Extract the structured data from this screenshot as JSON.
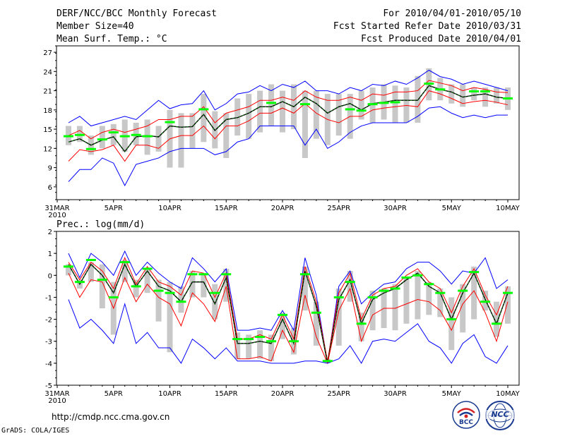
{
  "header": {
    "title": "DERF/NCC/BCC Monthly Forecast",
    "member_size": "Member Size=40",
    "variable": "Mean Surf. Temp.: °C",
    "period": "For 2010/04/01-2010/05/10",
    "fcst_started": "Fcst Started Refer Date 2010/03/31",
    "fcst_produced": "Fcst Produced Date 2010/04/01"
  },
  "footer": {
    "url": "http://cmdp.ncc.cma.gov.cn",
    "grads": "GrADS: COLA/IGES",
    "logo_bcc_text": "BCC",
    "logo_ncc_text": "NCC"
  },
  "colors": {
    "ensemble_line": "#0000ff",
    "spread_line": "#ff0000",
    "mean_line": "#000000",
    "observed": "#00e000",
    "box": "#c8c8c8",
    "bar": "#00ff00"
  },
  "chart_data": [
    {
      "type": "line",
      "title": "Mean Surf. Temp.: °C",
      "x_tick_labels": [
        "31MAR",
        "5APR",
        "10APR",
        "15APR",
        "20APR",
        "25APR",
        "30APR",
        "5MAY",
        "10MAY"
      ],
      "x_tick_days": [
        0,
        5,
        10,
        15,
        20,
        25,
        30,
        35,
        40
      ],
      "x_year_label": "2010",
      "ylim": [
        4,
        28
      ],
      "yticks": [
        6,
        9,
        12,
        15,
        18,
        21,
        24,
        27
      ],
      "days": [
        1,
        2,
        3,
        4,
        5,
        6,
        7,
        8,
        9,
        10,
        11,
        12,
        13,
        14,
        15,
        16,
        17,
        18,
        19,
        20,
        21,
        22,
        23,
        24,
        25,
        26,
        27,
        28,
        29,
        30,
        31,
        32,
        33,
        34,
        35,
        36,
        37,
        38,
        39,
        40
      ],
      "series": [
        {
          "name": "max",
          "values": [
            16,
            17,
            15.5,
            16,
            16.5,
            17,
            16.5,
            18,
            19.5,
            18.2,
            18.8,
            19,
            21,
            18,
            19,
            20.5,
            20.8,
            21.8,
            21,
            22,
            21.5,
            22.5,
            21,
            21,
            20.5,
            21.5,
            21,
            22,
            21.8,
            22.5,
            22,
            23,
            24.2,
            23.2,
            22.8,
            22,
            22.5,
            22,
            21.5,
            21
          ]
        },
        {
          "name": "upper",
          "values": [
            14,
            14.8,
            13.5,
            14.5,
            15,
            14.5,
            15,
            15.5,
            16.5,
            16.5,
            17,
            17,
            18.5,
            16,
            17.5,
            18,
            18.5,
            19.5,
            19.5,
            20,
            19.5,
            21,
            20,
            19.5,
            19.5,
            20,
            19.5,
            20.5,
            20.3,
            20.8,
            20.8,
            21,
            22.6,
            22.2,
            21.8,
            21,
            21.5,
            21.2,
            20.8,
            20.7
          ]
        },
        {
          "name": "mean",
          "values": [
            13,
            13.5,
            12.5,
            13.3,
            13.8,
            11.5,
            13.8,
            14,
            13.8,
            15.5,
            15.3,
            15.4,
            17.3,
            14.8,
            16.5,
            16.8,
            17.5,
            18.5,
            18.5,
            19.3,
            18.5,
            20,
            19,
            17.5,
            18.5,
            19,
            18,
            19,
            19.2,
            19.5,
            19.5,
            19.5,
            21.8,
            21.2,
            20.8,
            20,
            20.3,
            20.5,
            20,
            19.8
          ]
        },
        {
          "name": "lower",
          "values": [
            10,
            11.8,
            11.5,
            11.8,
            12.5,
            10,
            12.5,
            12.5,
            12,
            13.5,
            14,
            14,
            15.5,
            13.5,
            15.5,
            15.5,
            16.3,
            17.5,
            17.5,
            18.3,
            17.5,
            19,
            17.5,
            16.5,
            16,
            17,
            17,
            18,
            18.3,
            18.5,
            18.7,
            18.5,
            21,
            20.5,
            19.8,
            19,
            19.3,
            19.5,
            19.2,
            18.8
          ]
        },
        {
          "name": "min",
          "values": [
            6.8,
            8.7,
            8.7,
            10.5,
            9.7,
            6.2,
            9.5,
            10,
            10.5,
            11.5,
            12,
            12,
            12,
            11,
            11.5,
            13,
            13.5,
            15.5,
            15.5,
            15.5,
            15.5,
            12.5,
            15,
            12,
            13,
            14.5,
            15.5,
            16,
            16,
            16,
            16,
            17,
            18.3,
            18.5,
            17.5,
            16.8,
            17.2,
            16.8,
            17.2,
            17.2
          ]
        }
      ],
      "boxes": {
        "low": [
          12.5,
          13,
          11,
          12,
          12.5,
          11.5,
          12.5,
          11,
          11.5,
          9,
          9,
          12,
          13,
          12,
          10.5,
          14,
          13.5,
          14.5,
          15.5,
          14.5,
          15,
          10.5,
          13.5,
          12.5,
          14,
          13.5,
          16.5,
          16,
          16.5,
          16,
          16,
          16,
          19.5,
          19.5,
          19,
          18.5,
          19.5,
          18.5,
          19,
          18
        ],
        "high": [
          15.5,
          15.5,
          14,
          15.5,
          15.8,
          16.5,
          16,
          16.5,
          15.5,
          18,
          17.5,
          17.5,
          20.5,
          17.8,
          17.5,
          19.8,
          20.5,
          21,
          22,
          21,
          22,
          21,
          21,
          20.5,
          20.5,
          20.5,
          21,
          21.5,
          22,
          21.8,
          21.5,
          23.3,
          24.5,
          23,
          22,
          22,
          21.5,
          21.5,
          21.5,
          21.5
        ]
      },
      "observed_bars": [
        13.9,
        14.1,
        11.9,
        13.4,
        14.5,
        13.9,
        14.1,
        13.9,
        null,
        16.1,
        null,
        null,
        18.1,
        null,
        null,
        null,
        null,
        null,
        19.1,
        null,
        null,
        18.9,
        null,
        null,
        null,
        18.1,
        17.9,
        18.9,
        19.1,
        19.2,
        null,
        null,
        22.1,
        21.2,
        null,
        null,
        20.9,
        20.9,
        null,
        19.8
      ]
    },
    {
      "type": "line",
      "title": "Prec.: log(mm/d)",
      "x_tick_labels": [
        "31MAR",
        "5APR",
        "10APR",
        "15APR",
        "20APR",
        "25APR",
        "30APR",
        "5MAY",
        "10MAY"
      ],
      "x_tick_days": [
        0,
        5,
        10,
        15,
        20,
        25,
        30,
        35,
        40
      ],
      "x_year_label": "2010",
      "ylim": [
        -5,
        2
      ],
      "yticks": [
        -5,
        -4,
        -3,
        -2,
        -1,
        0,
        1,
        2
      ],
      "days": [
        1,
        2,
        3,
        4,
        5,
        6,
        7,
        8,
        9,
        10,
        11,
        12,
        13,
        14,
        15,
        16,
        17,
        18,
        19,
        20,
        21,
        22,
        23,
        24,
        25,
        26,
        27,
        28,
        29,
        30,
        31,
        32,
        33,
        34,
        35,
        36,
        37,
        38,
        39,
        40
      ],
      "series": [
        {
          "name": "max",
          "values": [
            1,
            -0.1,
            1,
            0.6,
            0,
            1.1,
            0,
            0.6,
            0.1,
            -0.3,
            -0.6,
            0.8,
            0.3,
            -0.3,
            0.3,
            -2.5,
            -2.5,
            -2.4,
            -2.5,
            -1.6,
            -2.5,
            0.8,
            -0.9,
            -4,
            -0.5,
            0.2,
            -1.3,
            -0.8,
            -0.4,
            -0.3,
            0.3,
            0.6,
            0.6,
            0.2,
            -0.4,
            0.2,
            0.1,
            0.8,
            -0.6,
            -0.2
          ]
        },
        {
          "name": "upper",
          "values": [
            0.6,
            -0.2,
            0.6,
            0.2,
            -0.6,
            0.8,
            -0.4,
            0.4,
            -0.3,
            -0.5,
            -0.9,
            0.2,
            0.1,
            -1,
            0.1,
            -2.9,
            -2.9,
            -2.7,
            -2.9,
            -1.8,
            -2.9,
            0.4,
            -1.2,
            -3.9,
            -0.8,
            0.1,
            -2,
            -0.9,
            -0.6,
            -0.5,
            0,
            0.3,
            -0.3,
            -0.6,
            -1.7,
            -0.5,
            0.3,
            -0.9,
            -1.8,
            -0.5
          ]
        },
        {
          "name": "mean",
          "values": [
            0.5,
            -0.4,
            0.5,
            0,
            -0.8,
            0.5,
            -0.5,
            0.2,
            -0.5,
            -0.7,
            -1.2,
            -0.3,
            -0.3,
            -1.3,
            -0.1,
            -3.1,
            -3.1,
            -3,
            -3.1,
            -2,
            -3.1,
            0.2,
            -1.4,
            -4,
            -1.1,
            -0.2,
            -2.2,
            -1.1,
            -0.8,
            -0.6,
            -0.2,
            0.1,
            -0.5,
            -0.8,
            -2,
            -0.8,
            0.1,
            -1.1,
            -2.2,
            -0.8
          ]
        },
        {
          "name": "lower",
          "values": [
            0.1,
            -1,
            -0.2,
            -0.3,
            -1.5,
            -0.1,
            -1.2,
            -0.4,
            -1,
            -1.3,
            -2.3,
            -0.8,
            -1.3,
            -2.1,
            -0.5,
            -3.8,
            -3.8,
            -3.7,
            -3.9,
            -2.5,
            -3.5,
            -0.9,
            -2.8,
            -4,
            -1.6,
            -0.6,
            -3,
            -1.8,
            -1.5,
            -1.5,
            -1.3,
            -1.1,
            -1.2,
            -1.6,
            -2.5,
            -1.3,
            -0.7,
            -1.7,
            -3,
            -1.2
          ]
        },
        {
          "name": "min",
          "values": [
            -1.1,
            -2.4,
            -2,
            -2.5,
            -3.1,
            -1.3,
            -3.1,
            -2.6,
            -3.3,
            -3.3,
            -4,
            -2.9,
            -3.3,
            -3.8,
            -3.3,
            -3.9,
            -3.9,
            -3.9,
            -4,
            -4,
            -4,
            -3.9,
            -3.9,
            -4,
            -3.8,
            -3.2,
            -4,
            -3,
            -2.9,
            -3,
            -2.6,
            -2.2,
            -3,
            -3.3,
            -4,
            -3.1,
            -2.7,
            -3.7,
            -4,
            -3.2
          ]
        }
      ],
      "boxes": {
        "low": [
          0,
          -0.6,
          -0.3,
          -1.5,
          -2.7,
          -0.3,
          -1,
          -0.8,
          -2.1,
          -3.5,
          -1.7,
          -1,
          -1,
          -2,
          -1.2,
          -3.8,
          -3.8,
          -3.8,
          -3.9,
          -2.9,
          -3.6,
          -1.6,
          -3.2,
          -4,
          -3.2,
          -1.2,
          -3,
          -2.5,
          -2.4,
          -2.5,
          -2.2,
          -2,
          -1.8,
          -1.9,
          -3.4,
          -2.6,
          -2,
          -1.6,
          -2.8,
          -2.2
        ],
        "high": [
          0.5,
          -0.2,
          0.6,
          0.5,
          -0.3,
          0.7,
          -0.2,
          0.3,
          -0.2,
          -0.3,
          -0.5,
          0.2,
          0.1,
          -0.4,
          0.3,
          -2.6,
          -2.7,
          -2.5,
          -2.7,
          -1.7,
          -2.4,
          0.4,
          -1.2,
          -3.8,
          -0.6,
          0.2,
          -1.7,
          -0.7,
          -0.6,
          -0.4,
          -0.1,
          0.2,
          -0.3,
          -0.6,
          -1,
          -0.4,
          0.4,
          -0.7,
          -1.2,
          -0.5
        ]
      },
      "observed_bars": [
        0.4,
        -0.3,
        0.7,
        -0.2,
        -1,
        0.6,
        -0.5,
        0.3,
        -0.7,
        -0.8,
        -1.2,
        0.05,
        0.05,
        -0.8,
        0.05,
        -2.9,
        -2.9,
        -2.8,
        -3,
        -1.8,
        -3,
        0.05,
        -1.7,
        -3.9,
        -1,
        -0.3,
        -2.2,
        -1,
        -0.7,
        -0.6,
        -0.1,
        0,
        -0.4,
        -0.8,
        -2,
        -0.7,
        0.15,
        -1.2,
        -2.2,
        -0.8
      ]
    }
  ]
}
